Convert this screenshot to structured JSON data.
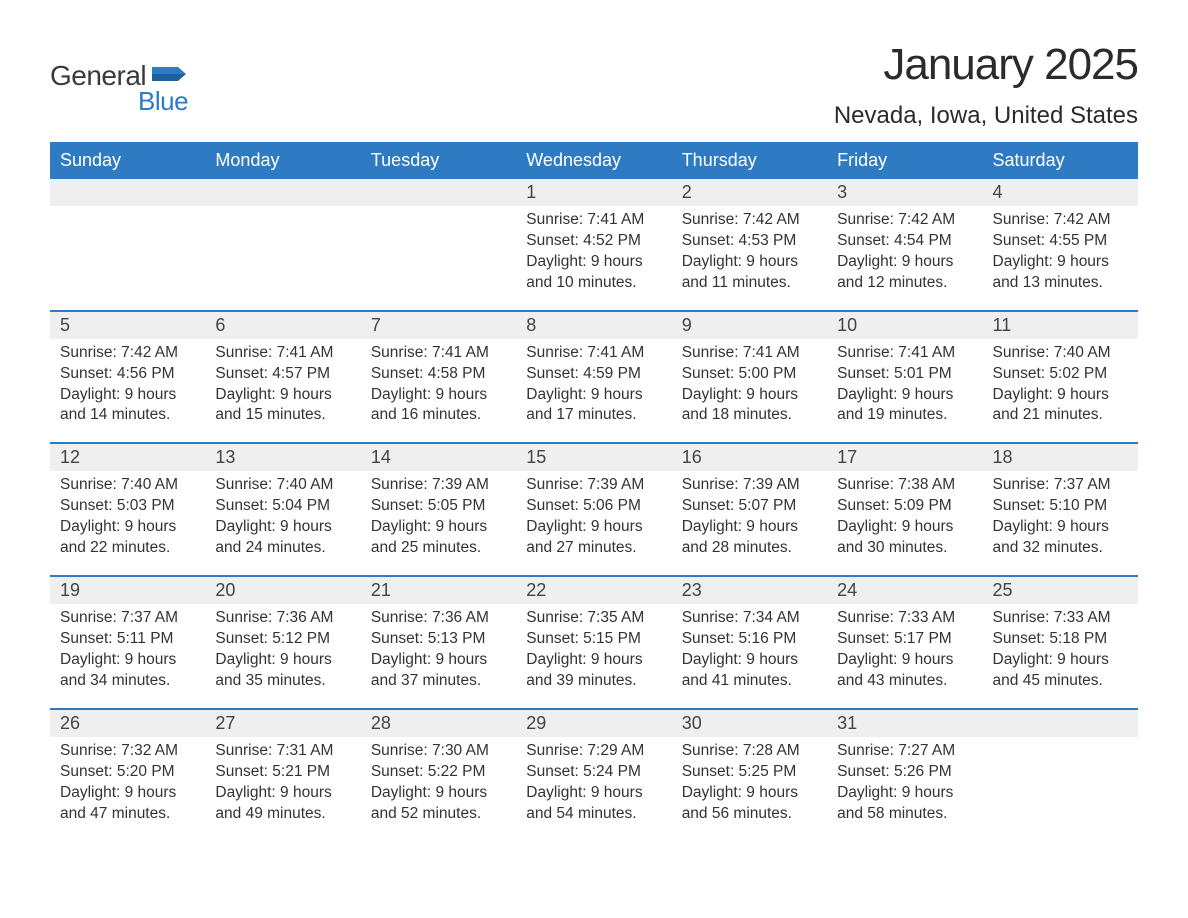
{
  "logo": {
    "word1": "General",
    "word2": "Blue",
    "flag_color": "#2e7bc4",
    "text_color_1": "#3a3a3a",
    "text_color_2": "#2e7bc4"
  },
  "title": "January 2025",
  "location": "Nevada, Iowa, United States",
  "colors": {
    "header_bg": "#2e7bc4",
    "header_text": "#ffffff",
    "daynum_bg": "#efefef",
    "row_border": "#2e7bc4",
    "body_text": "#333333",
    "page_bg": "#ffffff"
  },
  "typography": {
    "title_fontsize": 44,
    "location_fontsize": 24,
    "header_fontsize": 18,
    "daynum_fontsize": 18,
    "body_fontsize": 15.5
  },
  "weekdays": [
    "Sunday",
    "Monday",
    "Tuesday",
    "Wednesday",
    "Thursday",
    "Friday",
    "Saturday"
  ],
  "weeks": [
    [
      {
        "day": null
      },
      {
        "day": null
      },
      {
        "day": null
      },
      {
        "day": 1,
        "sunrise": "7:41 AM",
        "sunset": "4:52 PM",
        "daylight_hours": 9,
        "daylight_minutes": 10
      },
      {
        "day": 2,
        "sunrise": "7:42 AM",
        "sunset": "4:53 PM",
        "daylight_hours": 9,
        "daylight_minutes": 11
      },
      {
        "day": 3,
        "sunrise": "7:42 AM",
        "sunset": "4:54 PM",
        "daylight_hours": 9,
        "daylight_minutes": 12
      },
      {
        "day": 4,
        "sunrise": "7:42 AM",
        "sunset": "4:55 PM",
        "daylight_hours": 9,
        "daylight_minutes": 13
      }
    ],
    [
      {
        "day": 5,
        "sunrise": "7:42 AM",
        "sunset": "4:56 PM",
        "daylight_hours": 9,
        "daylight_minutes": 14
      },
      {
        "day": 6,
        "sunrise": "7:41 AM",
        "sunset": "4:57 PM",
        "daylight_hours": 9,
        "daylight_minutes": 15
      },
      {
        "day": 7,
        "sunrise": "7:41 AM",
        "sunset": "4:58 PM",
        "daylight_hours": 9,
        "daylight_minutes": 16
      },
      {
        "day": 8,
        "sunrise": "7:41 AM",
        "sunset": "4:59 PM",
        "daylight_hours": 9,
        "daylight_minutes": 17
      },
      {
        "day": 9,
        "sunrise": "7:41 AM",
        "sunset": "5:00 PM",
        "daylight_hours": 9,
        "daylight_minutes": 18
      },
      {
        "day": 10,
        "sunrise": "7:41 AM",
        "sunset": "5:01 PM",
        "daylight_hours": 9,
        "daylight_minutes": 19
      },
      {
        "day": 11,
        "sunrise": "7:40 AM",
        "sunset": "5:02 PM",
        "daylight_hours": 9,
        "daylight_minutes": 21
      }
    ],
    [
      {
        "day": 12,
        "sunrise": "7:40 AM",
        "sunset": "5:03 PM",
        "daylight_hours": 9,
        "daylight_minutes": 22
      },
      {
        "day": 13,
        "sunrise": "7:40 AM",
        "sunset": "5:04 PM",
        "daylight_hours": 9,
        "daylight_minutes": 24
      },
      {
        "day": 14,
        "sunrise": "7:39 AM",
        "sunset": "5:05 PM",
        "daylight_hours": 9,
        "daylight_minutes": 25
      },
      {
        "day": 15,
        "sunrise": "7:39 AM",
        "sunset": "5:06 PM",
        "daylight_hours": 9,
        "daylight_minutes": 27
      },
      {
        "day": 16,
        "sunrise": "7:39 AM",
        "sunset": "5:07 PM",
        "daylight_hours": 9,
        "daylight_minutes": 28
      },
      {
        "day": 17,
        "sunrise": "7:38 AM",
        "sunset": "5:09 PM",
        "daylight_hours": 9,
        "daylight_minutes": 30
      },
      {
        "day": 18,
        "sunrise": "7:37 AM",
        "sunset": "5:10 PM",
        "daylight_hours": 9,
        "daylight_minutes": 32
      }
    ],
    [
      {
        "day": 19,
        "sunrise": "7:37 AM",
        "sunset": "5:11 PM",
        "daylight_hours": 9,
        "daylight_minutes": 34
      },
      {
        "day": 20,
        "sunrise": "7:36 AM",
        "sunset": "5:12 PM",
        "daylight_hours": 9,
        "daylight_minutes": 35
      },
      {
        "day": 21,
        "sunrise": "7:36 AM",
        "sunset": "5:13 PM",
        "daylight_hours": 9,
        "daylight_minutes": 37
      },
      {
        "day": 22,
        "sunrise": "7:35 AM",
        "sunset": "5:15 PM",
        "daylight_hours": 9,
        "daylight_minutes": 39
      },
      {
        "day": 23,
        "sunrise": "7:34 AM",
        "sunset": "5:16 PM",
        "daylight_hours": 9,
        "daylight_minutes": 41
      },
      {
        "day": 24,
        "sunrise": "7:33 AM",
        "sunset": "5:17 PM",
        "daylight_hours": 9,
        "daylight_minutes": 43
      },
      {
        "day": 25,
        "sunrise": "7:33 AM",
        "sunset": "5:18 PM",
        "daylight_hours": 9,
        "daylight_minutes": 45
      }
    ],
    [
      {
        "day": 26,
        "sunrise": "7:32 AM",
        "sunset": "5:20 PM",
        "daylight_hours": 9,
        "daylight_minutes": 47
      },
      {
        "day": 27,
        "sunrise": "7:31 AM",
        "sunset": "5:21 PM",
        "daylight_hours": 9,
        "daylight_minutes": 49
      },
      {
        "day": 28,
        "sunrise": "7:30 AM",
        "sunset": "5:22 PM",
        "daylight_hours": 9,
        "daylight_minutes": 52
      },
      {
        "day": 29,
        "sunrise": "7:29 AM",
        "sunset": "5:24 PM",
        "daylight_hours": 9,
        "daylight_minutes": 54
      },
      {
        "day": 30,
        "sunrise": "7:28 AM",
        "sunset": "5:25 PM",
        "daylight_hours": 9,
        "daylight_minutes": 56
      },
      {
        "day": 31,
        "sunrise": "7:27 AM",
        "sunset": "5:26 PM",
        "daylight_hours": 9,
        "daylight_minutes": 58
      },
      {
        "day": null
      }
    ]
  ],
  "labels": {
    "sunrise": "Sunrise:",
    "sunset": "Sunset:",
    "daylight_prefix": "Daylight:",
    "hours_word": "hours",
    "and_word": "and",
    "minutes_word": "minutes."
  }
}
